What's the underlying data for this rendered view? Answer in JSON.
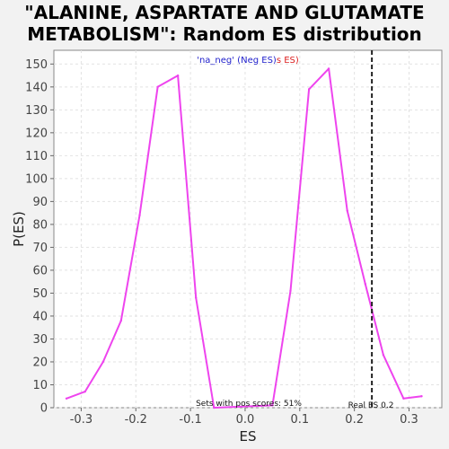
{
  "chart_data": {
    "type": "line",
    "title_line1": "\"ALANINE, ASPARTATE AND GLUTAMATE",
    "title_line2": "METABOLISM\": Random ES distribution",
    "xlabel": "ES",
    "ylabel": "P(ES)",
    "xlim": [
      -0.35,
      0.36
    ],
    "ylim": [
      0,
      156
    ],
    "xticks": [
      -0.3,
      -0.2,
      -0.1,
      0.0,
      0.1,
      0.2,
      0.3
    ],
    "xtick_labels": [
      "-0.3",
      "-0.2",
      "-0.1",
      "0.0",
      "0.1",
      "0.2",
      "0.3"
    ],
    "yticks": [
      0,
      10,
      20,
      30,
      40,
      50,
      60,
      70,
      80,
      90,
      100,
      110,
      120,
      130,
      140,
      150
    ],
    "ytick_labels": [
      "0",
      "10",
      "20",
      "30",
      "40",
      "50",
      "60",
      "70",
      "80",
      "90",
      "100",
      "110",
      "120",
      "130",
      "140",
      "150"
    ],
    "grid": true,
    "series": [
      {
        "color": "#ee44ee",
        "x": [
          -0.327,
          -0.293,
          -0.26,
          -0.227,
          -0.193,
          -0.16,
          -0.123,
          -0.09,
          -0.057,
          0.05,
          0.083,
          0.117,
          0.153,
          0.187,
          0.22,
          0.253,
          0.29,
          0.323
        ],
        "y": [
          4,
          7,
          20,
          38,
          84,
          140,
          145,
          48,
          0,
          1,
          51,
          139,
          148,
          86,
          54,
          23,
          4,
          5
        ]
      }
    ],
    "vline": {
      "x": 0.232,
      "color": "#222222",
      "style": "dashed"
    },
    "legend": {
      "placement": "top-center",
      "part1": "'na_neg' (Neg ES)",
      "part1_color": "#2222cc",
      "part2": "s ES)",
      "part2_color": "#dd2222"
    },
    "annotations": {
      "pos_scores": "Sets with pos scores: 51%",
      "real_es": "Real ES 0.2"
    }
  }
}
